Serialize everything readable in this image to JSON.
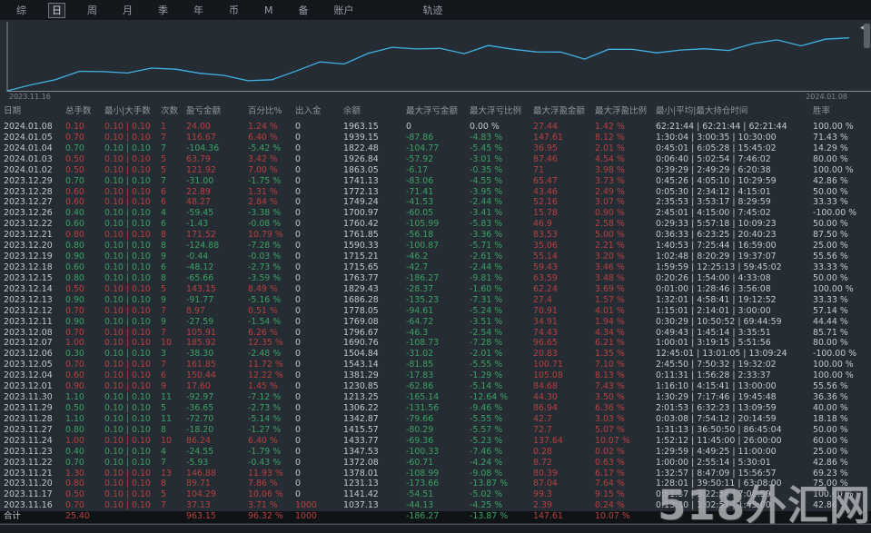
{
  "tabs": {
    "items": [
      {
        "label": "综",
        "active": false
      },
      {
        "label": "日",
        "active": true
      },
      {
        "label": "周",
        "active": false
      },
      {
        "label": "月",
        "active": false
      },
      {
        "label": "季",
        "active": false
      },
      {
        "label": "年",
        "active": false
      },
      {
        "label": "币",
        "active": false
      },
      {
        "label": "M",
        "active": false
      },
      {
        "label": "备",
        "active": false
      },
      {
        "label": "账户",
        "active": false
      },
      {
        "label": "轨迹",
        "active": false,
        "far": true
      }
    ]
  },
  "chart_data": {
    "type": "line",
    "x_start_label": "2023.11.16",
    "x_end_label": "2024.01.08",
    "x": [
      "2023.11.16",
      "2023.11.17",
      "2023.11.20",
      "2023.11.21",
      "2023.11.22",
      "2023.11.23",
      "2023.11.24",
      "2023.11.27",
      "2023.11.28",
      "2023.11.29",
      "2023.11.30",
      "2023.12.01",
      "2023.12.04",
      "2023.12.05",
      "2023.12.06",
      "2023.12.07",
      "2023.12.08",
      "2023.12.11",
      "2023.12.12",
      "2023.12.13",
      "2023.12.14",
      "2023.12.15",
      "2023.12.18",
      "2023.12.19",
      "2023.12.20",
      "2023.12.21",
      "2023.12.22",
      "2023.12.26",
      "2023.12.27",
      "2023.12.28",
      "2023.12.29",
      "2024.01.02",
      "2024.01.03",
      "2024.01.04",
      "2024.01.05",
      "2024.01.08"
    ],
    "values": [
      1037.13,
      1141.42,
      1231.13,
      1378.01,
      1372.08,
      1347.53,
      1433.77,
      1415.57,
      1342.87,
      1306.22,
      1213.25,
      1230.85,
      1381.29,
      1543.14,
      1504.84,
      1690.76,
      1796.67,
      1769.08,
      1778.05,
      1686.28,
      1829.43,
      1763.77,
      1715.65,
      1715.21,
      1590.33,
      1761.85,
      1760.42,
      1700.97,
      1749.24,
      1772.13,
      1741.13,
      1863.05,
      1926.84,
      1822.48,
      1939.15,
      1963.15
    ],
    "ylim": [
      990,
      2100
    ],
    "line_color": "#3fb2e3",
    "axis_color": "#878d94",
    "label_color": "#80868e"
  },
  "table": {
    "columns": [
      "日期",
      "总手数",
      "最小|大手数",
      "次数",
      "盈亏金额",
      "百分比%",
      "出入金",
      "余额",
      "最大浮亏金额",
      "最大浮亏比例",
      "最大浮盈金额",
      "最大浮盈比例",
      "最小|平均|最大持仓时间",
      "胜率"
    ],
    "column_keys": [
      "date",
      "lots",
      "min-max-lots",
      "count",
      "pnl",
      "percent",
      "deposit",
      "balance",
      "max-float-loss",
      "max-float-loss-pct",
      "max-float-profit",
      "max-float-profit-pct",
      "hold-time",
      "win-rate"
    ],
    "rows": [
      {
        "trend": "up",
        "cells": [
          "2024.01.08",
          "0.10",
          "0.10 | 0.10",
          "1",
          "24.00",
          "1.24 %",
          "0",
          "1963.15",
          "0",
          "0.00 %",
          "27.44",
          "1.42 %",
          "62:21:44 | 62:21:44 | 62:21:44",
          "100.00 %"
        ]
      },
      {
        "trend": "up",
        "cells": [
          "2024.01.05",
          "0.70",
          "0.10 | 0.10",
          "7",
          "116.67",
          "6.40 %",
          "0",
          "1939.15",
          "-87.86",
          "-4.83 %",
          "147.61",
          "8.12 %",
          "1:30:04 | 3:00:35 | 10:30:00",
          "71.43 %"
        ]
      },
      {
        "trend": "down",
        "cells": [
          "2024.01.04",
          "0.70",
          "0.10 | 0.10",
          "7",
          "-104.36",
          "-5.42 %",
          "0",
          "1822.48",
          "-104.77",
          "-5.45 %",
          "36.95",
          "2.01 %",
          "0:45:01 | 6:05:28 | 15:45:02",
          "14.29 %"
        ]
      },
      {
        "trend": "up",
        "cells": [
          "2024.01.03",
          "0.50",
          "0.10 | 0.10",
          "5",
          "63.79",
          "3.42 %",
          "0",
          "1926.84",
          "-57.92",
          "-3.01 %",
          "87.46",
          "4.54 %",
          "0:06:40 | 5:02:54 | 7:46:02",
          "80.00 %"
        ]
      },
      {
        "trend": "up",
        "cells": [
          "2024.01.02",
          "0.50",
          "0.10 | 0.10",
          "5",
          "121.92",
          "7.00 %",
          "0",
          "1863.05",
          "-6.17",
          "-0.35 %",
          "71",
          "3.98 %",
          "0:39:29 | 2:49:29 | 6:20:38",
          "100.00 %"
        ]
      },
      {
        "trend": "down",
        "cells": [
          "2023.12.29",
          "0.70",
          "0.10 | 0.10",
          "7",
          "-31.00",
          "-1.75 %",
          "0",
          "1741.13",
          "-83.06",
          "-4.55 %",
          "65.47",
          "3.73 %",
          "0:45:26 | 4:05:10 | 10:29:59",
          "42.86 %"
        ]
      },
      {
        "trend": "up",
        "cells": [
          "2023.12.28",
          "0.60",
          "0.10 | 0.10",
          "6",
          "22.89",
          "1.31 %",
          "0",
          "1772.13",
          "-71.41",
          "-3.95 %",
          "43.46",
          "2.49 %",
          "0:05:30 | 2:34:12 | 4:15:01",
          "50.00 %"
        ]
      },
      {
        "trend": "up",
        "cells": [
          "2023.12.27",
          "0.60",
          "0.10 | 0.10",
          "6",
          "48.27",
          "2.84 %",
          "0",
          "1749.24",
          "-41.53",
          "-2.44 %",
          "52.16",
          "3.07 %",
          "2:35:53 | 3:53:17 | 8:29:59",
          "33.33 %"
        ]
      },
      {
        "trend": "down",
        "cells": [
          "2023.12.26",
          "0.40",
          "0.10 | 0.10",
          "4",
          "-59.45",
          "-3.38 %",
          "0",
          "1700.97",
          "-60.05",
          "-3.41 %",
          "15.78",
          "0.90 %",
          "2:45:01 | 4:15:00 | 7:45:02",
          "-100.00 %"
        ]
      },
      {
        "trend": "down",
        "cells": [
          "2023.12.22",
          "0.60",
          "0.10 | 0.10",
          "6",
          "-1.43",
          "-0.08 %",
          "0",
          "1760.42",
          "-105.99",
          "-5.83 %",
          "46.9",
          "2.58 %",
          "0:29:33 | 5:57:18 | 10:09:23",
          "50.00 %"
        ]
      },
      {
        "trend": "up",
        "cells": [
          "2023.12.21",
          "0.80",
          "0.10 | 0.10",
          "8",
          "171.52",
          "10.79 %",
          "0",
          "1761.85",
          "-56.18",
          "-3.36 %",
          "83.53",
          "5.00 %",
          "0:36:33 | 6:23:25 | 20:40:23",
          "87.50 %"
        ]
      },
      {
        "trend": "down",
        "cells": [
          "2023.12.20",
          "0.80",
          "0.10 | 0.10",
          "8",
          "-124.88",
          "-7.28 %",
          "0",
          "1590.33",
          "-100.87",
          "-5.71 %",
          "35.06",
          "2.21 %",
          "1:40:53 | 7:25:44 | 16:59:00",
          "25.00 %"
        ]
      },
      {
        "trend": "down",
        "cells": [
          "2023.12.19",
          "0.90",
          "0.10 | 0.10",
          "9",
          "-0.44",
          "-0.03 %",
          "0",
          "1715.21",
          "-46.2",
          "-2.61 %",
          "55.14",
          "3.20 %",
          "1:02:48 | 8:20:29 | 19:37:07",
          "55.56 %"
        ]
      },
      {
        "trend": "down",
        "cells": [
          "2023.12.18",
          "0.60",
          "0.10 | 0.10",
          "6",
          "-48.12",
          "-2.73 %",
          "0",
          "1715.65",
          "-42.7",
          "-2.44 %",
          "59.43",
          "3.46 %",
          "1:59:59 | 12:25:13 | 59:45:02",
          "33.33 %"
        ]
      },
      {
        "trend": "down",
        "cells": [
          "2023.12.15",
          "0.80",
          "0.10 | 0.10",
          "8",
          "-65.66",
          "-3.59 %",
          "0",
          "1763.77",
          "-186.27",
          "-9.81 %",
          "63.59",
          "3.48 %",
          "0:20:26 | 1:54:00 | 4:33:08",
          "50.00 %"
        ]
      },
      {
        "trend": "up",
        "cells": [
          "2023.12.14",
          "0.50",
          "0.10 | 0.10",
          "5",
          "143.15",
          "8.49 %",
          "0",
          "1829.43",
          "-28.37",
          "-1.60 %",
          "62.24",
          "3.69 %",
          "0:01:00 | 1:28:46 | 3:56:08",
          "100.00 %"
        ]
      },
      {
        "trend": "down",
        "cells": [
          "2023.12.13",
          "0.90",
          "0.10 | 0.10",
          "9",
          "-91.77",
          "-5.16 %",
          "0",
          "1686.28",
          "-135.23",
          "-7.31 %",
          "27.4",
          "1.57 %",
          "1:32:01 | 4:58:41 | 19:12:52",
          "33.33 %"
        ]
      },
      {
        "trend": "up",
        "cells": [
          "2023.12.12",
          "0.70",
          "0.10 | 0.10",
          "7",
          "8.97",
          "0.51 %",
          "0",
          "1778.05",
          "-94.61",
          "-5.24 %",
          "70.91",
          "4.01 %",
          "1:15:01 | 2:14:01 | 3:00:00",
          "57.14 %"
        ]
      },
      {
        "trend": "down",
        "cells": [
          "2023.12.11",
          "0.90",
          "0.10 | 0.10",
          "9",
          "-27.59",
          "-1.54 %",
          "0",
          "1769.08",
          "-64.72",
          "-3.51 %",
          "34.91",
          "1.94 %",
          "0:30:29 | 10:50:52 | 69:44:59",
          "44.44 %"
        ]
      },
      {
        "trend": "up",
        "cells": [
          "2023.12.08",
          "0.70",
          "0.10 | 0.10",
          "7",
          "105.91",
          "6.26 %",
          "0",
          "1796.67",
          "-46.3",
          "-2.54 %",
          "74.43",
          "4.34 %",
          "0:49:43 | 1:45:14 | 3:35:51",
          "85.71 %"
        ]
      },
      {
        "trend": "up",
        "cells": [
          "2023.12.07",
          "1.00",
          "0.10 | 0.10",
          "10",
          "185.92",
          "12.35 %",
          "0",
          "1690.76",
          "-108.73",
          "-7.28 %",
          "96.65",
          "6.21 %",
          "1:00:01 | 3:19:15 | 5:51:56",
          "80.00 %"
        ]
      },
      {
        "trend": "down",
        "cells": [
          "2023.12.06",
          "0.30",
          "0.10 | 0.10",
          "3",
          "-38.30",
          "-2.48 %",
          "0",
          "1504.84",
          "-31.02",
          "-2.01 %",
          "20.83",
          "1.35 %",
          "12:45:01 | 13:01:05 | 13:09:24",
          "-100.00 %"
        ]
      },
      {
        "trend": "up",
        "cells": [
          "2023.12.05",
          "0.70",
          "0.10 | 0.10",
          "7",
          "161.85",
          "11.72 %",
          "0",
          "1543.14",
          "-81.85",
          "-5.55 %",
          "100.71",
          "7.10 %",
          "2:45:50 | 7:50:32 | 19:32:02",
          "100.00 %"
        ]
      },
      {
        "trend": "up",
        "cells": [
          "2023.12.04",
          "0.60",
          "0.10 | 0.10",
          "6",
          "150.44",
          "12.22 %",
          "0",
          "1381.29",
          "-17.83",
          "-1.29 %",
          "105.08",
          "8.13 %",
          "0:11:31 | 1:56:28 | 2:33:37",
          "100.00 %"
        ]
      },
      {
        "trend": "up",
        "cells": [
          "2023.12.01",
          "0.90",
          "0.10 | 0.10",
          "9",
          "17.60",
          "1.45 %",
          "0",
          "1230.85",
          "-62.86",
          "-5.14 %",
          "84.68",
          "7.43 %",
          "1:16:10 | 4:15:41 | 13:00:00",
          "55.56 %"
        ]
      },
      {
        "trend": "down",
        "cells": [
          "2023.11.30",
          "1.10",
          "0.10 | 0.10",
          "11",
          "-92.97",
          "-7.12 %",
          "0",
          "1213.25",
          "-165.14",
          "-12.64 %",
          "44.30",
          "3.50 %",
          "1:30:29 | 7:17:46 | 19:45:48",
          "36.36 %"
        ]
      },
      {
        "trend": "down",
        "cells": [
          "2023.11.29",
          "0.50",
          "0.10 | 0.10",
          "5",
          "-36.65",
          "-2.73 %",
          "0",
          "1306.22",
          "-131.56",
          "-9.46 %",
          "86.94",
          "6.36 %",
          "2:01:53 | 6:32:23 | 13:09:59",
          "40.00 %"
        ]
      },
      {
        "trend": "down",
        "cells": [
          "2023.11.28",
          "1.10",
          "0.10 | 0.10",
          "11",
          "-72.70",
          "-5.14 %",
          "0",
          "1342.87",
          "-79.66",
          "-5.55 %",
          "42.7",
          "3.03 %",
          "0:03:08 | 7:54:12 | 20:14:59",
          "18.18 %"
        ]
      },
      {
        "trend": "down",
        "cells": [
          "2023.11.27",
          "0.80",
          "0.10 | 0.10",
          "8",
          "-18.20",
          "-1.27 %",
          "0",
          "1415.57",
          "-80.29",
          "-5.57 %",
          "72.7",
          "5.07 %",
          "1:31:13 | 36:50:50 | 86:45:04",
          "50.00 %"
        ]
      },
      {
        "trend": "up",
        "cells": [
          "2023.11.24",
          "1.00",
          "0.10 | 0.10",
          "10",
          "86.24",
          "6.40 %",
          "0",
          "1433.77",
          "-69.36",
          "-5.23 %",
          "137.64",
          "10.07 %",
          "1:52:12 | 11:45:00 | 26:00:00",
          "60.00 %"
        ]
      },
      {
        "trend": "down",
        "cells": [
          "2023.11.23",
          "0.40",
          "0.10 | 0.10",
          "4",
          "-24.55",
          "-1.79 %",
          "0",
          "1347.53",
          "-100.33",
          "-7.46 %",
          "0.28",
          "0.02 %",
          "1:29:59 | 4:49:25 | 11:00:00",
          "25.00 %"
        ]
      },
      {
        "trend": "down",
        "cells": [
          "2023.11.22",
          "0.70",
          "0.10 | 0.10",
          "7",
          "-5.93",
          "-0.43 %",
          "0",
          "1372.08",
          "-60.71",
          "-4.24 %",
          "8.72",
          "0.63 %",
          "1:00:00 | 2:55:14 | 5:30:01",
          "42.86 %"
        ]
      },
      {
        "trend": "up",
        "cells": [
          "2023.11.21",
          "1.30",
          "0.10 | 0.10",
          "13",
          "146.88",
          "11.93 %",
          "0",
          "1378.01",
          "-108.99",
          "-9.08 %",
          "80.39",
          "6.17 %",
          "1:32:57 | 8:47:09 | 15:56:57",
          "69.23 %"
        ]
      },
      {
        "trend": "up",
        "cells": [
          "2023.11.20",
          "0.80",
          "0.10 | 0.10",
          "8",
          "89.71",
          "7.86 %",
          "0",
          "1231.13",
          "-173.66",
          "-13.87 %",
          "87.04",
          "7.64 %",
          "1:28:01 | 39:50:11 | 63:08:00",
          "75.00 %"
        ]
      },
      {
        "trend": "up",
        "cells": [
          "2023.11.17",
          "0.50",
          "0.10 | 0.10",
          "5",
          "104.29",
          "10.06 %",
          "0",
          "1141.42",
          "-54.51",
          "-5.02 %",
          "99.3",
          "9.15 %",
          "0:51:37 | 3:22:54 | 7:08:59",
          "100.00 %"
        ]
      },
      {
        "trend": "up",
        "cells": [
          "2023.11.16",
          "0.70",
          "0.10 | 0.10",
          "7",
          "37.13",
          "3.71 %",
          "1000",
          "1037.13",
          "-44.13",
          "-4.25 %",
          "2.39",
          "0.24 %",
          "0:13:30 | 1:02:51 | 1:45:00",
          "42.86 %"
        ]
      }
    ],
    "total_row": {
      "trend": "up",
      "cells": [
        "合计",
        "25.40",
        "",
        "",
        "963.15",
        "96.32 %",
        "1000",
        "",
        "-186.27",
        "-13.87 %",
        "147.61",
        "10.07 %",
        "",
        ""
      ]
    }
  },
  "watermark": {
    "text": "518外汇网"
  }
}
